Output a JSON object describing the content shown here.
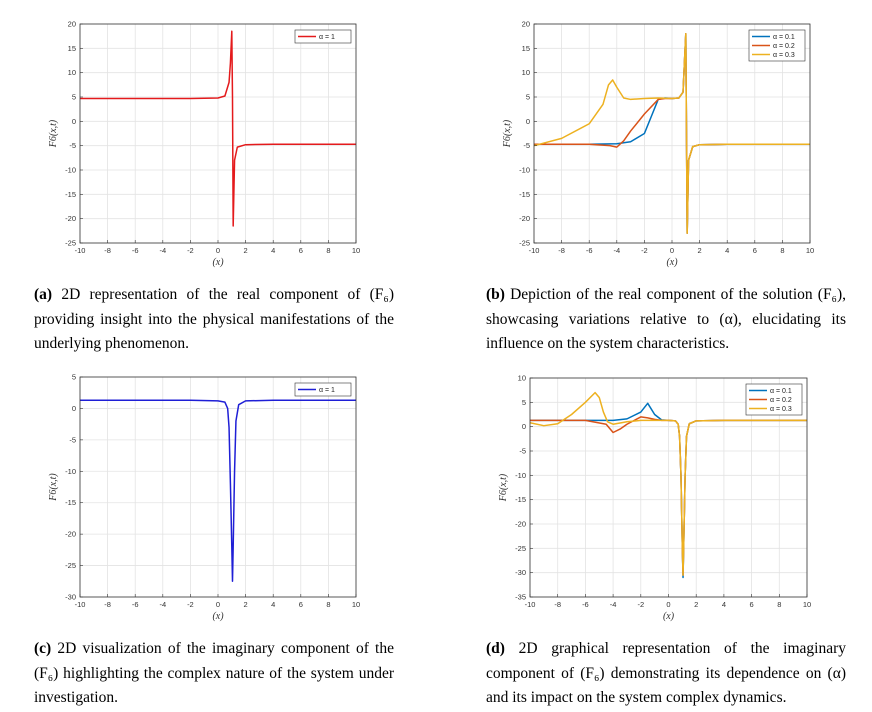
{
  "colors": {
    "red": "#e41a1c",
    "blue": "#0072bd",
    "orange": "#d95319",
    "yellow": "#edb120",
    "navy": "#1f1fd6"
  },
  "captions": [
    {
      "tag": "(a)",
      "text": "2D representation of the real component of (F₆) providing insight into the physical manifestations of the underlying phenomenon."
    },
    {
      "tag": "(b)",
      "text": "Depiction of the real component of the solution (F₆), showcasing variations relative to (α), elucidating its influence on the system characteristics."
    },
    {
      "tag": "(c)",
      "text": "2D visualization of the imaginary component of the (F₆) highlighting the complex nature of the system under investigation."
    },
    {
      "tag": "(d)",
      "text": "2D graphical representation of the imaginary component of (F₆) demonstrating its dependence on (α) and its impact on the system complex dynamics."
    }
  ],
  "chart_data": [
    {
      "type": "line",
      "xlabel": "(x)",
      "ylabel": "F6(x,t)",
      "xlim": [
        -10,
        10
      ],
      "ylim": [
        -25,
        20
      ],
      "xticks": [
        -10,
        -8,
        -6,
        -4,
        -2,
        0,
        2,
        4,
        6,
        8,
        10
      ],
      "yticks": [
        -25,
        -20,
        -15,
        -10,
        -5,
        0,
        5,
        10,
        15,
        20
      ],
      "grid": true,
      "legend_position": "top-right",
      "series": [
        {
          "name": "α = 1",
          "color": "#e41a1c",
          "x": [
            -10,
            -6,
            -2,
            0,
            0.5,
            0.8,
            0.9,
            1.0,
            1.05,
            1.1,
            1.2,
            1.4,
            2,
            4,
            10
          ],
          "y": [
            4.7,
            4.7,
            4.7,
            4.8,
            5.2,
            8,
            12,
            18.5,
            5,
            -21.5,
            -8,
            -5.3,
            -4.8,
            -4.7,
            -4.7
          ]
        }
      ]
    },
    {
      "type": "line",
      "xlabel": "(x)",
      "ylabel": "F6(x,t)",
      "xlim": [
        -10,
        10
      ],
      "ylim": [
        -25,
        20
      ],
      "xticks": [
        -10,
        -8,
        -6,
        -4,
        -2,
        0,
        2,
        4,
        6,
        8,
        10
      ],
      "yticks": [
        -25,
        -20,
        -15,
        -10,
        -5,
        0,
        5,
        10,
        15,
        20
      ],
      "grid": true,
      "legend_position": "top-right",
      "series": [
        {
          "name": "α = 0.1",
          "color": "#0072bd",
          "x": [
            -10,
            -6,
            -4,
            -3,
            -2,
            -1.5,
            -1,
            -0.5,
            0,
            0.5,
            0.8,
            0.9,
            1.0,
            1.1,
            1.2,
            1.5,
            2,
            4,
            10
          ],
          "y": [
            -4.7,
            -4.7,
            -4.6,
            -4.2,
            -2.5,
            1,
            4.5,
            4.8,
            4.7,
            4.8,
            6,
            12,
            18,
            -23,
            -8,
            -5.2,
            -4.8,
            -4.7,
            -4.7
          ]
        },
        {
          "name": "α = 0.2",
          "color": "#d95319",
          "x": [
            -10,
            -6,
            -4.5,
            -4,
            -3.5,
            -3,
            -2,
            -1,
            -0.5,
            0,
            0.5,
            0.8,
            0.9,
            1.0,
            1.1,
            1.2,
            1.5,
            2,
            4,
            10
          ],
          "y": [
            -4.7,
            -4.7,
            -5,
            -5.3,
            -4,
            -2,
            1.5,
            4.5,
            4.7,
            4.7,
            4.8,
            6,
            12,
            18,
            -23,
            -8,
            -5.2,
            -4.8,
            -4.7,
            -4.7
          ]
        },
        {
          "name": "α = 0.3",
          "color": "#edb120",
          "x": [
            -10,
            -8,
            -6,
            -5,
            -4.6,
            -4.3,
            -4,
            -3.5,
            -3,
            -2,
            -1,
            0,
            0.5,
            0.8,
            0.9,
            1.0,
            1.1,
            1.2,
            1.5,
            2,
            4,
            10
          ],
          "y": [
            -5,
            -3.5,
            -0.5,
            3.5,
            7.5,
            8.5,
            7,
            4.8,
            4.5,
            4.7,
            4.8,
            4.7,
            4.8,
            6,
            12,
            18,
            -23,
            -8,
            -5.2,
            -4.8,
            -4.7,
            -4.7
          ]
        }
      ]
    },
    {
      "type": "line",
      "xlabel": "(x)",
      "ylabel": "F6(x,t)",
      "xlim": [
        -10,
        10
      ],
      "ylim": [
        -30,
        5
      ],
      "xticks": [
        -10,
        -8,
        -6,
        -4,
        -2,
        0,
        2,
        4,
        6,
        8,
        10
      ],
      "yticks": [
        -30,
        -25,
        -20,
        -15,
        -10,
        -5,
        0,
        5
      ],
      "grid": true,
      "legend_position": "top-right",
      "series": [
        {
          "name": "α = 1",
          "color": "#1f1fd6",
          "x": [
            -10,
            -4,
            -2,
            0,
            0.5,
            0.7,
            0.8,
            0.9,
            1.0,
            1.05,
            1.1,
            1.2,
            1.3,
            1.5,
            2,
            4,
            10
          ],
          "y": [
            1.3,
            1.3,
            1.3,
            1.2,
            1.0,
            0,
            -3,
            -12,
            -22,
            -27.5,
            -22,
            -10,
            -2,
            0.6,
            1.2,
            1.3,
            1.3
          ]
        }
      ]
    },
    {
      "type": "line",
      "xlabel": "(x)",
      "ylabel": "F6(x,t)",
      "xlim": [
        -10,
        10
      ],
      "ylim": [
        -35,
        10
      ],
      "xticks": [
        -10,
        -8,
        -6,
        -4,
        -2,
        0,
        2,
        4,
        6,
        8,
        10
      ],
      "yticks": [
        -35,
        -30,
        -25,
        -20,
        -15,
        -10,
        -5,
        0,
        5,
        10
      ],
      "grid": true,
      "legend_position": "top-right",
      "series": [
        {
          "name": "α = 0.1",
          "color": "#0072bd",
          "x": [
            -10,
            -6,
            -4,
            -3,
            -2,
            -1.5,
            -1,
            -0.5,
            0,
            0.5,
            0.7,
            0.8,
            0.9,
            1.0,
            1.05,
            1.1,
            1.2,
            1.3,
            1.5,
            2,
            4,
            10
          ],
          "y": [
            1.3,
            1.3,
            1.3,
            1.6,
            3,
            4.8,
            2.5,
            1.4,
            1.3,
            1.2,
            0.5,
            -2,
            -10,
            -25,
            -31,
            -24,
            -10,
            -2,
            0.6,
            1.2,
            1.3,
            1.3
          ]
        },
        {
          "name": "α = 0.2",
          "color": "#d95319",
          "x": [
            -10,
            -6,
            -4.5,
            -4,
            -3.5,
            -3,
            -2,
            -1.5,
            -1,
            -0.5,
            0,
            0.5,
            0.7,
            0.8,
            0.9,
            1.0,
            1.05,
            1.1,
            1.2,
            1.3,
            1.5,
            2,
            4,
            10
          ],
          "y": [
            1.3,
            1.3,
            0.5,
            -1.2,
            -0.5,
            0.5,
            2,
            1.8,
            1.5,
            1.3,
            1.3,
            1.2,
            0.5,
            -2,
            -10,
            -25,
            -30.5,
            -24,
            -10,
            -2,
            0.6,
            1.2,
            1.3,
            1.3
          ]
        },
        {
          "name": "α = 0.3",
          "color": "#edb120",
          "x": [
            -10,
            -9,
            -8,
            -7,
            -6,
            -5.3,
            -5,
            -4.7,
            -4.4,
            -4,
            -3,
            -2,
            -1,
            0,
            0.5,
            0.7,
            0.8,
            0.9,
            1.0,
            1.05,
            1.1,
            1.2,
            1.3,
            1.5,
            2,
            4,
            10
          ],
          "y": [
            0.8,
            0.2,
            0.6,
            2.5,
            5,
            7,
            6,
            3,
            1,
            0.5,
            1,
            1.3,
            1.3,
            1.3,
            1.2,
            0.5,
            -2,
            -10,
            -25,
            -30.5,
            -24,
            -10,
            -2,
            0.6,
            1.2,
            1.3,
            1.3
          ]
        }
      ]
    }
  ]
}
